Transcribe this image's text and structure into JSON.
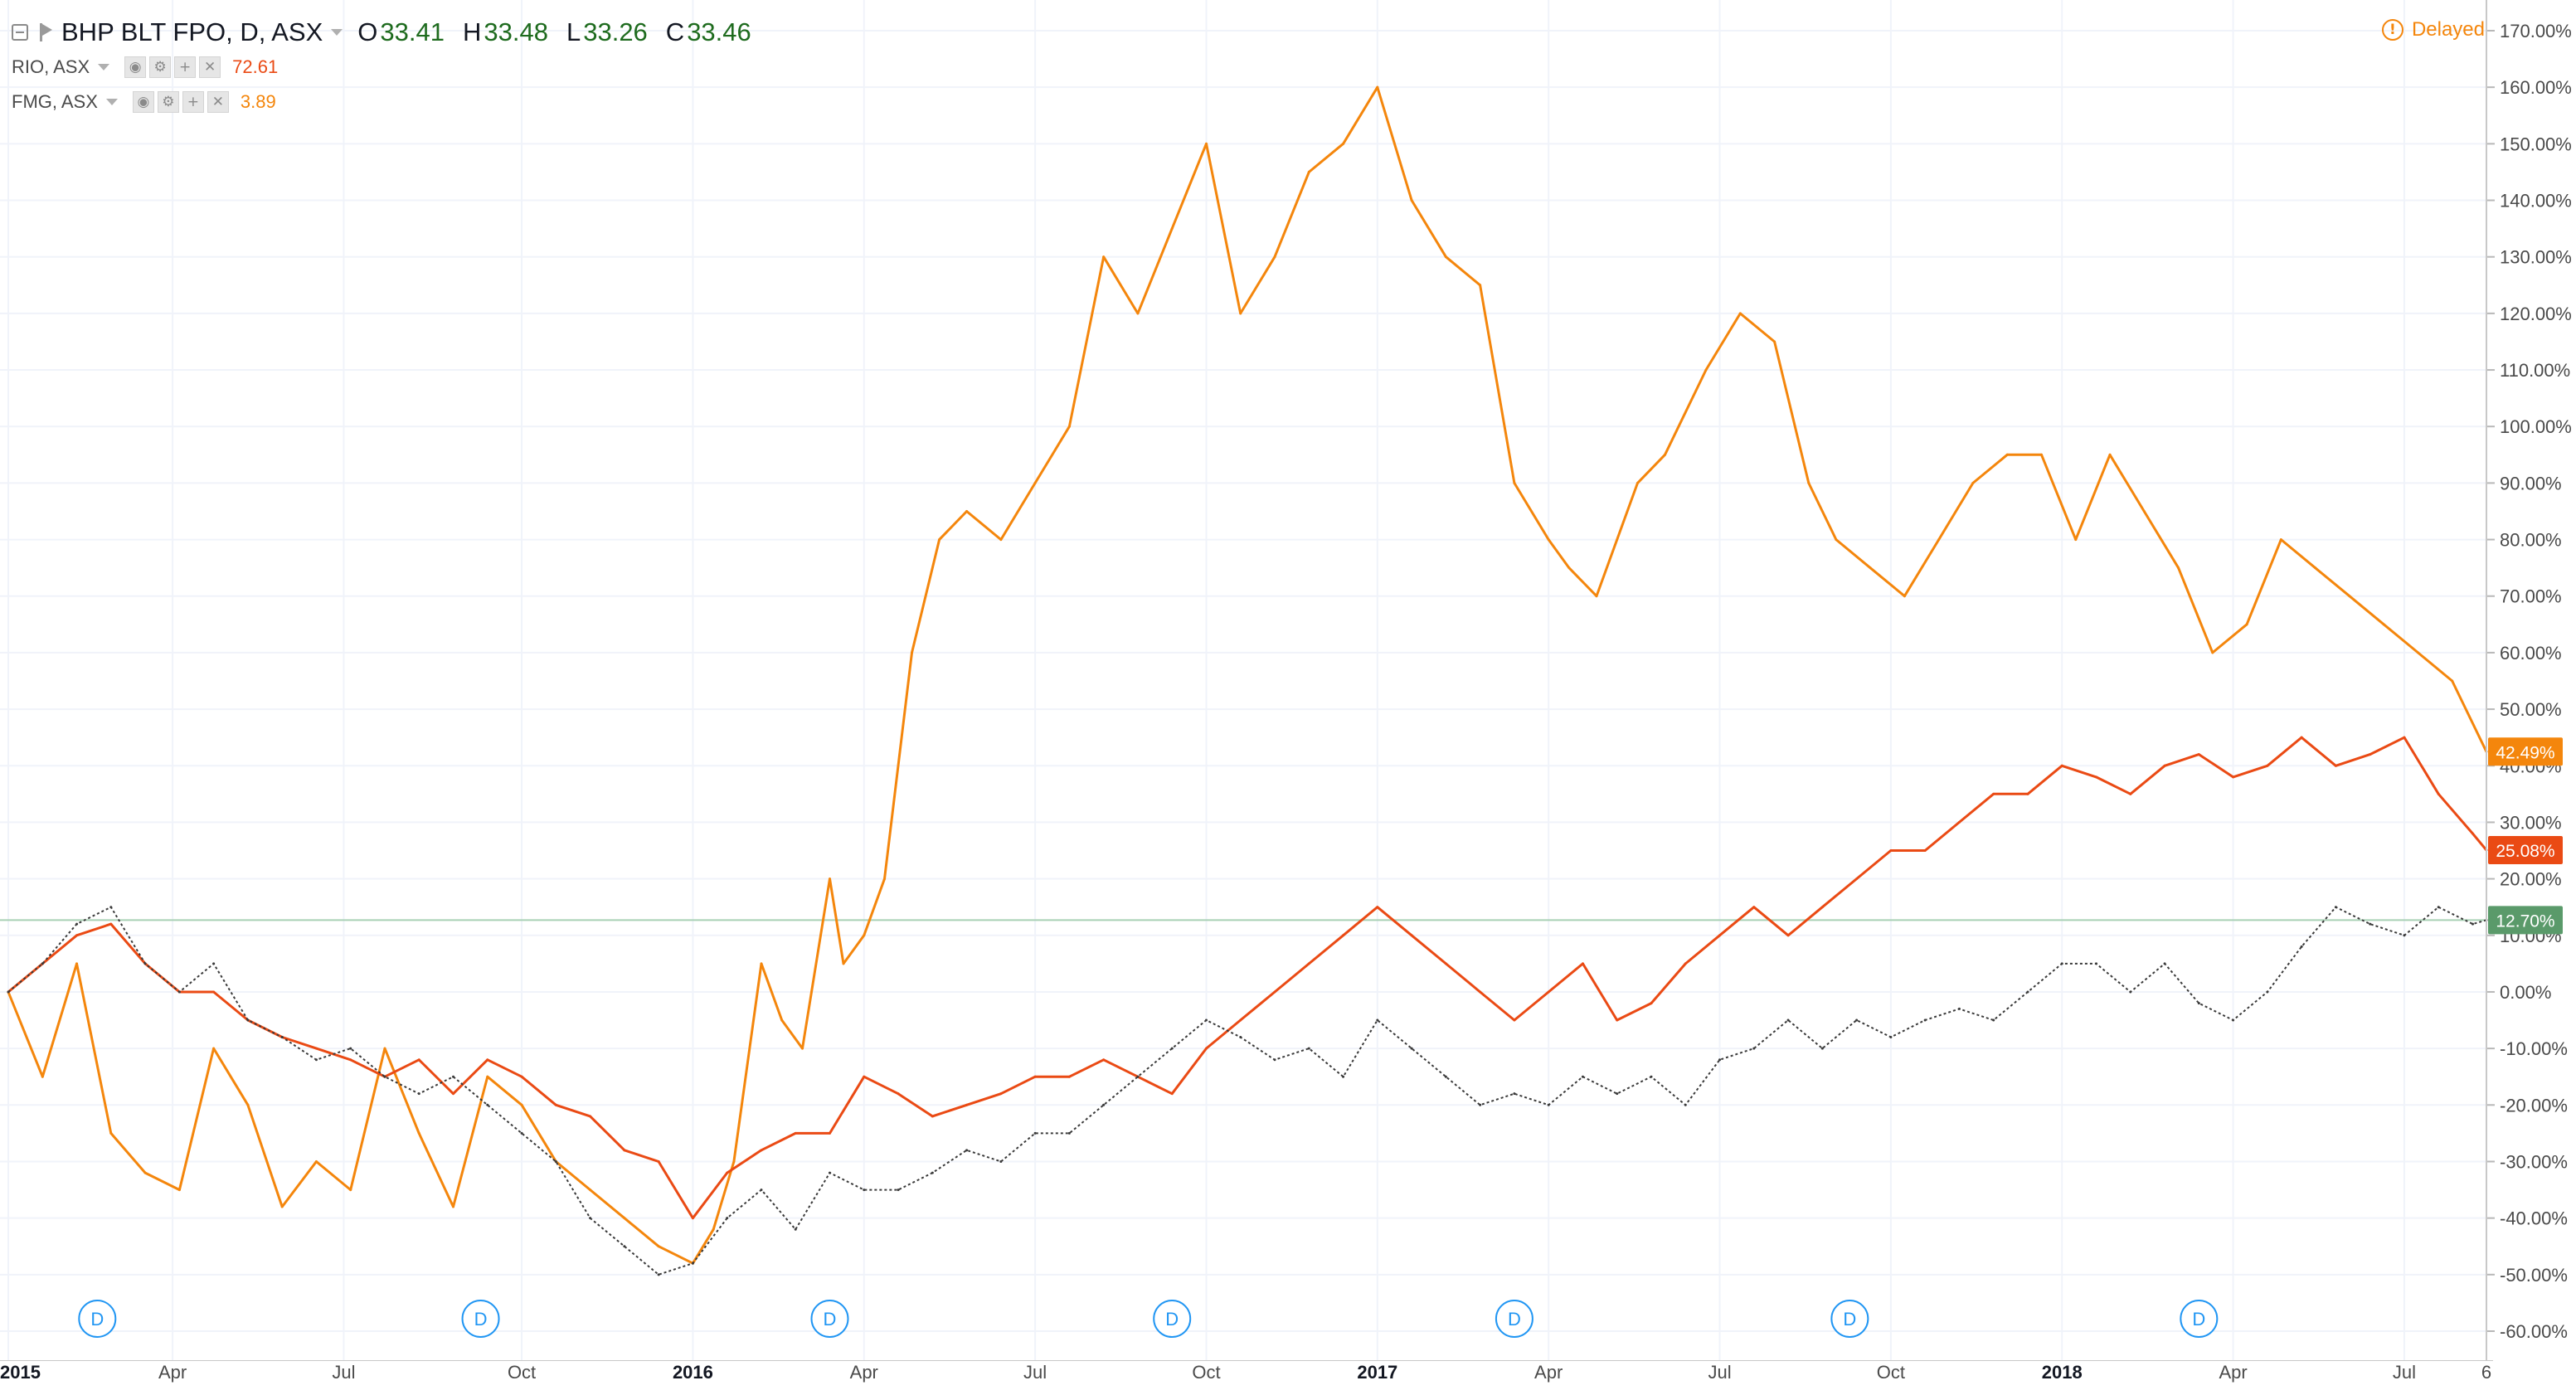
{
  "legend": {
    "main": {
      "label": "BHP BLT FPO, D, ASX",
      "open_k": "O",
      "open": "33.41",
      "high_k": "H",
      "high": "33.48",
      "low_k": "L",
      "low": "33.26",
      "close_k": "C",
      "close": "33.46"
    },
    "compare": [
      {
        "label": "RIO, ASX",
        "value": "72.61",
        "color": "#ea4a14"
      },
      {
        "label": "FMG, ASX",
        "value": "3.89",
        "color": "#f4860c"
      }
    ],
    "icons": [
      "eye-icon",
      "gear-icon",
      "plus-icon",
      "close-icon"
    ]
  },
  "status": {
    "delayed": "Delayed",
    "icon": "warning-icon"
  },
  "chart_data": {
    "type": "line",
    "x_ticks": [
      "2015",
      "Apr",
      "Jul",
      "Oct",
      "2016",
      "Apr",
      "Jul",
      "Oct",
      "2017",
      "Apr",
      "Jul",
      "Oct",
      "2018",
      "Apr",
      "Jul",
      "6"
    ],
    "y_ticks": [
      "170.00%",
      "160.00%",
      "150.00%",
      "140.00%",
      "130.00%",
      "120.00%",
      "110.00%",
      "100.00%",
      "90.00%",
      "80.00%",
      "70.00%",
      "60.00%",
      "50.00%",
      "40.00%",
      "30.00%",
      "20.00%",
      "10.00%",
      "0.00%",
      "-10.00%",
      "-20.00%",
      "-30.00%",
      "-40.00%",
      "-50.00%",
      "-60.00%"
    ],
    "ylim": [
      -60,
      170
    ],
    "grid": true,
    "series": [
      {
        "name": "FMG, ASX",
        "color": "#f4860c",
        "x": [
          2015.0,
          2015.05,
          2015.1,
          2015.15,
          2015.2,
          2015.25,
          2015.3,
          2015.35,
          2015.4,
          2015.45,
          2015.5,
          2015.55,
          2015.6,
          2015.65,
          2015.7,
          2015.75,
          2015.8,
          2015.85,
          2015.9,
          2015.95,
          2016.0,
          2016.03,
          2016.06,
          2016.1,
          2016.13,
          2016.16,
          2016.2,
          2016.22,
          2016.25,
          2016.28,
          2016.32,
          2016.36,
          2016.4,
          2016.45,
          2016.5,
          2016.55,
          2016.6,
          2016.65,
          2016.7,
          2016.75,
          2016.8,
          2016.85,
          2016.9,
          2016.95,
          2017.0,
          2017.05,
          2017.1,
          2017.15,
          2017.2,
          2017.25,
          2017.28,
          2017.32,
          2017.38,
          2017.42,
          2017.48,
          2017.53,
          2017.58,
          2017.63,
          2017.67,
          2017.72,
          2017.77,
          2017.82,
          2017.87,
          2017.92,
          2017.97,
          2018.02,
          2018.07,
          2018.12,
          2018.17,
          2018.22,
          2018.27,
          2018.32,
          2018.37,
          2018.42,
          2018.47,
          2018.52,
          2018.57,
          2018.62
        ],
        "y": [
          0,
          -15,
          5,
          -25,
          -32,
          -35,
          -10,
          -20,
          -38,
          -30,
          -35,
          -10,
          -25,
          -38,
          -15,
          -20,
          -30,
          -35,
          -40,
          -45,
          -48,
          -42,
          -30,
          5,
          -5,
          -10,
          20,
          5,
          10,
          20,
          60,
          80,
          85,
          80,
          90,
          100,
          130,
          120,
          135,
          150,
          120,
          130,
          145,
          150,
          160,
          140,
          130,
          125,
          90,
          80,
          75,
          70,
          90,
          95,
          110,
          120,
          115,
          90,
          80,
          75,
          70,
          80,
          90,
          95,
          95,
          80,
          95,
          85,
          75,
          60,
          65,
          80,
          75,
          70,
          65,
          60,
          55,
          42.49
        ]
      },
      {
        "name": "RIO, ASX",
        "color": "#ea4a14",
        "x": [
          2015.0,
          2015.05,
          2015.1,
          2015.15,
          2015.2,
          2015.25,
          2015.3,
          2015.35,
          2015.4,
          2015.45,
          2015.5,
          2015.55,
          2015.6,
          2015.65,
          2015.7,
          2015.75,
          2015.8,
          2015.85,
          2015.9,
          2015.95,
          2016.0,
          2016.05,
          2016.1,
          2016.15,
          2016.2,
          2016.25,
          2016.3,
          2016.35,
          2016.4,
          2016.45,
          2016.5,
          2016.55,
          2016.6,
          2016.65,
          2016.7,
          2016.75,
          2016.8,
          2016.85,
          2016.9,
          2016.95,
          2017.0,
          2017.05,
          2017.1,
          2017.15,
          2017.2,
          2017.25,
          2017.3,
          2017.35,
          2017.4,
          2017.45,
          2017.5,
          2017.55,
          2017.6,
          2017.65,
          2017.7,
          2017.75,
          2017.8,
          2017.85,
          2017.9,
          2017.95,
          2018.0,
          2018.05,
          2018.1,
          2018.15,
          2018.2,
          2018.25,
          2018.3,
          2018.35,
          2018.4,
          2018.45,
          2018.5,
          2018.55,
          2018.6,
          2018.62
        ],
        "y": [
          0,
          5,
          10,
          12,
          5,
          0,
          0,
          -5,
          -8,
          -10,
          -12,
          -15,
          -12,
          -18,
          -12,
          -15,
          -20,
          -22,
          -28,
          -30,
          -40,
          -32,
          -28,
          -25,
          -25,
          -15,
          -18,
          -22,
          -20,
          -18,
          -15,
          -15,
          -12,
          -15,
          -18,
          -10,
          -5,
          0,
          5,
          10,
          15,
          10,
          5,
          0,
          -5,
          0,
          5,
          -5,
          -2,
          5,
          10,
          15,
          10,
          15,
          20,
          25,
          25,
          30,
          35,
          35,
          40,
          38,
          35,
          40,
          42,
          38,
          40,
          45,
          40,
          42,
          45,
          35,
          28,
          25.08
        ]
      },
      {
        "name": "BHP BLT FPO, D, ASX",
        "color": "#3a3a3a",
        "x": [
          2015.0,
          2015.05,
          2015.1,
          2015.15,
          2015.2,
          2015.25,
          2015.3,
          2015.35,
          2015.4,
          2015.45,
          2015.5,
          2015.55,
          2015.6,
          2015.65,
          2015.7,
          2015.75,
          2015.8,
          2015.85,
          2015.9,
          2015.95,
          2016.0,
          2016.05,
          2016.1,
          2016.15,
          2016.2,
          2016.25,
          2016.3,
          2016.35,
          2016.4,
          2016.45,
          2016.5,
          2016.55,
          2016.6,
          2016.65,
          2016.7,
          2016.75,
          2016.8,
          2016.85,
          2016.9,
          2016.95,
          2017.0,
          2017.05,
          2017.1,
          2017.15,
          2017.2,
          2017.25,
          2017.3,
          2017.35,
          2017.4,
          2017.45,
          2017.5,
          2017.55,
          2017.6,
          2017.65,
          2017.7,
          2017.75,
          2017.8,
          2017.85,
          2017.9,
          2017.95,
          2018.0,
          2018.05,
          2018.1,
          2018.15,
          2018.2,
          2018.25,
          2018.3,
          2018.35,
          2018.4,
          2018.45,
          2018.5,
          2018.55,
          2018.6,
          2018.62
        ],
        "y": [
          0,
          5,
          12,
          15,
          5,
          0,
          5,
          -5,
          -8,
          -12,
          -10,
          -15,
          -18,
          -15,
          -20,
          -25,
          -30,
          -40,
          -45,
          -50,
          -48,
          -40,
          -35,
          -42,
          -32,
          -35,
          -35,
          -32,
          -28,
          -30,
          -25,
          -25,
          -20,
          -15,
          -10,
          -5,
          -8,
          -12,
          -10,
          -15,
          -5,
          -10,
          -15,
          -20,
          -18,
          -20,
          -15,
          -18,
          -15,
          -20,
          -12,
          -10,
          -5,
          -10,
          -5,
          -8,
          -5,
          -3,
          -5,
          0,
          5,
          5,
          0,
          5,
          -2,
          -5,
          0,
          8,
          15,
          12,
          10,
          15,
          12,
          12.7
        ]
      }
    ],
    "price_tags": [
      {
        "label": "42.49%",
        "value": 42.49,
        "color": "#f4860c"
      },
      {
        "label": "25.08%",
        "value": 25.08,
        "color": "#ea4a14"
      },
      {
        "label": "12.70%",
        "value": 12.7,
        "color": "#5a9a6a"
      }
    ],
    "dividend_markers": [
      {
        "label": "D",
        "x": 2015.13
      },
      {
        "label": "D",
        "x": 2015.69
      },
      {
        "label": "D",
        "x": 2016.2
      },
      {
        "label": "D",
        "x": 2016.7
      },
      {
        "label": "D",
        "x": 2017.2
      },
      {
        "label": "D",
        "x": 2017.69
      },
      {
        "label": "D",
        "x": 2018.2
      }
    ]
  }
}
